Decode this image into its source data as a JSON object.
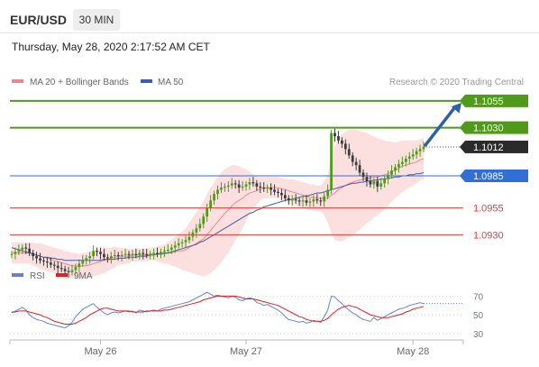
{
  "header": {
    "symbol": "EUR/USD",
    "timeframe": "30 MIN",
    "timestamp": "Thursday, May 28, 2020 2:17:52 AM CET"
  },
  "legend": {
    "items": [
      {
        "label": "MA 20 + Bollinger Bands",
        "color": "#f0868c"
      },
      {
        "label": "MA 50",
        "color": "#3d5fa8"
      }
    ],
    "credit": "Research © 2020 Trading Central"
  },
  "colors": {
    "resistance": "#4f9a1a",
    "pivot": "#2f6fd6",
    "support": "#e53935",
    "last_price": "#2b2b2b",
    "arrow": "#2f5fa8",
    "candle_up": "#4f9a1a",
    "candle_down": "#3a3a3a",
    "band_fill": "#fbd5d5",
    "ma20": "#f0868c",
    "ma50": "#3d5fa8",
    "rsi": "#5f82d8",
    "rsi_ma": "#e02020"
  },
  "chart_data": [
    {
      "type": "candlestick",
      "ylim": [
        1.0905,
        1.1065
      ],
      "x_ticks": [
        {
          "label": "May 26",
          "index": 25
        },
        {
          "label": "May 27",
          "index": 66
        },
        {
          "label": "May 28",
          "index": 113
        }
      ],
      "levels": [
        {
          "value": 1.1055,
          "label": "1.1055",
          "kind": "resistance"
        },
        {
          "value": 1.103,
          "label": "1.1030",
          "kind": "resistance"
        },
        {
          "value": 1.1012,
          "label": "1.1012",
          "kind": "last_price"
        },
        {
          "value": 1.0985,
          "label": "1.0985",
          "kind": "pivot"
        },
        {
          "value": 1.0955,
          "label": "1.0955",
          "kind": "support"
        },
        {
          "value": 1.093,
          "label": "1.0930",
          "kind": "support"
        }
      ],
      "close": [
        1.0912,
        1.0914,
        1.0916,
        1.0918,
        1.0917,
        1.0913,
        1.091,
        1.0908,
        1.0906,
        1.0905,
        1.0904,
        1.0902,
        1.0901,
        1.0899,
        1.0898,
        1.0896,
        1.0895,
        1.0897,
        1.09,
        1.0903,
        1.0906,
        1.0908,
        1.091,
        1.0915,
        1.0914,
        1.0912,
        1.0909,
        1.0908,
        1.091,
        1.0911,
        1.091,
        1.0911,
        1.0912,
        1.0911,
        1.0912,
        1.0911,
        1.0913,
        1.0912,
        1.0911,
        1.0912,
        1.0913,
        1.0912,
        1.0914,
        1.0915,
        1.0916,
        1.0918,
        1.092,
        1.0922,
        1.0923,
        1.0925,
        1.0928,
        1.0932,
        1.0936,
        1.094,
        1.0947,
        1.0955,
        1.0962,
        1.0968,
        1.0972,
        1.0974,
        1.0975,
        1.0976,
        1.0978,
        1.0977,
        1.0974,
        1.0975,
        1.0977,
        1.0979,
        1.0978,
        1.0975,
        1.0974,
        1.0973,
        1.0974,
        1.0972,
        1.097,
        1.0969,
        1.0967,
        1.0964,
        1.0962,
        1.0963,
        1.0962,
        1.0961,
        1.0962,
        1.096,
        1.0961,
        1.0963,
        1.0962,
        1.0961,
        1.0966,
        1.0972,
        1.1025,
        1.1022,
        1.1018,
        1.1015,
        1.101,
        1.1004,
        1.0998,
        1.0995,
        1.0988,
        1.0984,
        1.098,
        1.0977,
        1.098,
        1.0975,
        1.0978,
        1.0982,
        1.0986,
        1.099,
        1.0993,
        1.0996,
        1.0998,
        1.1001,
        1.1003,
        1.1005,
        1.1008,
        1.101,
        1.1012
      ],
      "ma20": [
        1.0913,
        1.0913,
        1.0913,
        1.0913,
        1.0913,
        1.0913,
        1.0912,
        1.0911,
        1.091,
        1.0909,
        1.0908,
        1.0907,
        1.0906,
        1.0905,
        1.0904,
        1.0903,
        1.0902,
        1.0901,
        1.0901,
        1.09,
        1.0901,
        1.0901,
        1.0902,
        1.0903,
        1.0904,
        1.0905,
        1.0906,
        1.0907,
        1.0908,
        1.0909,
        1.091,
        1.091,
        1.091,
        1.091,
        1.0911,
        1.0911,
        1.0911,
        1.0911,
        1.0911,
        1.0912,
        1.0912,
        1.0912,
        1.0912,
        1.0912,
        1.0913,
        1.0913,
        1.0914,
        1.0915,
        1.0915,
        1.0916,
        1.0918,
        1.092,
        1.0922,
        1.0924,
        1.0926,
        1.093,
        1.0934,
        1.0938,
        1.0942,
        1.0946,
        1.095,
        1.0953,
        1.0957,
        1.096,
        1.0962,
        1.0964,
        1.0967,
        1.0969,
        1.097,
        1.0971,
        1.0973,
        1.0974,
        1.0974,
        1.0974,
        1.0974,
        1.0974,
        1.0973,
        1.0972,
        1.0971,
        1.097,
        1.0969,
        1.0968,
        1.0967,
        1.0966,
        1.0965,
        1.0965,
        1.0964,
        1.0964,
        1.0964,
        1.0964,
        1.0967,
        1.0969,
        1.0972,
        1.0974,
        1.0976,
        1.0978,
        1.0979,
        1.098,
        1.0981,
        1.0982,
        1.0983,
        1.0983,
        1.0984,
        1.0984,
        1.0985,
        1.0986,
        1.0987,
        1.0989,
        1.099,
        1.0992,
        1.0994,
        1.0995,
        1.0996,
        1.0997,
        1.0998,
        1.1,
        1.1001
      ],
      "band_width": [
        0.001,
        0.001,
        0.001,
        0.001,
        0.001,
        0.001,
        0.0011,
        0.0011,
        0.0012,
        0.0012,
        0.0012,
        0.0012,
        0.0012,
        0.0012,
        0.0012,
        0.0012,
        0.0012,
        0.0012,
        0.0012,
        0.0012,
        0.0012,
        0.0012,
        0.0012,
        0.0012,
        0.0012,
        0.0012,
        0.0012,
        0.0011,
        0.001,
        0.001,
        0.0008,
        0.0008,
        0.0007,
        0.0007,
        0.0006,
        0.0006,
        0.0006,
        0.0006,
        0.0006,
        0.0006,
        0.0006,
        0.0007,
        0.0008,
        0.0009,
        0.001,
        0.0012,
        0.0014,
        0.0016,
        0.0018,
        0.002,
        0.0023,
        0.0026,
        0.0029,
        0.0032,
        0.0035,
        0.0038,
        0.004,
        0.0041,
        0.0042,
        0.0042,
        0.0041,
        0.004,
        0.0038,
        0.0035,
        0.0032,
        0.0028,
        0.0024,
        0.002,
        0.0016,
        0.0013,
        0.0011,
        0.001,
        0.001,
        0.001,
        0.001,
        0.001,
        0.001,
        0.001,
        0.0011,
        0.0012,
        0.0012,
        0.0012,
        0.0012,
        0.0012,
        0.0012,
        0.0012,
        0.0012,
        0.0012,
        0.0016,
        0.0022,
        0.0036,
        0.0044,
        0.0048,
        0.005,
        0.005,
        0.005,
        0.0049,
        0.0048,
        0.0046,
        0.0044,
        0.0042,
        0.004,
        0.0038,
        0.0036,
        0.0034,
        0.0032,
        0.003,
        0.0028,
        0.0026,
        0.0025,
        0.0024,
        0.0023,
        0.0022,
        0.0021,
        0.002,
        0.0019,
        0.0019
      ],
      "ma50": [
        1.0918,
        1.0917,
        1.0916,
        1.0915,
        1.0914,
        1.0913,
        1.0912,
        1.0911,
        1.091,
        1.0909,
        1.0909,
        1.0908,
        1.0908,
        1.0907,
        1.0907,
        1.0906,
        1.0906,
        1.0906,
        1.0906,
        1.0906,
        1.0906,
        1.0906,
        1.0906,
        1.0906,
        1.0906,
        1.0906,
        1.0907,
        1.0907,
        1.0907,
        1.0907,
        1.0908,
        1.0908,
        1.0908,
        1.0909,
        1.0909,
        1.0909,
        1.091,
        1.091,
        1.091,
        1.0911,
        1.0911,
        1.0912,
        1.0912,
        1.0913,
        1.0913,
        1.0914,
        1.0915,
        1.0916,
        1.0917,
        1.0918,
        1.0919,
        1.092,
        1.0921,
        1.0923,
        1.0924,
        1.0926,
        1.0928,
        1.093,
        1.0932,
        1.0934,
        1.0936,
        1.0938,
        1.094,
        1.0942,
        1.0944,
        1.0946,
        1.0948,
        1.095,
        1.0951,
        1.0953,
        1.0954,
        1.0956,
        1.0957,
        1.0958,
        1.0959,
        1.096,
        1.0961,
        1.0962,
        1.0963,
        1.0963,
        1.0964,
        1.0965,
        1.0966,
        1.0966,
        1.0967,
        1.0968,
        1.0969,
        1.0969,
        1.097,
        1.0971,
        1.0972,
        1.0973,
        1.0974,
        1.0975,
        1.0976,
        1.0977,
        1.0978,
        1.0978,
        1.0979,
        1.0979,
        1.098,
        1.098,
        1.0981,
        1.0981,
        1.0982,
        1.0982,
        1.0983,
        1.0983,
        1.0984,
        1.0984,
        1.0985,
        1.0985,
        1.0986,
        1.0986,
        1.0987,
        1.0987,
        1.0988
      ],
      "forecast_arrow": {
        "from_index": 116,
        "from_value": 1.1012,
        "to_index": 125,
        "to_value": 1.1055
      }
    },
    {
      "type": "line",
      "legend": [
        "RSI",
        "9MA"
      ],
      "ylim": [
        25,
        80
      ],
      "y_ticks": [
        70,
        50,
        30
      ],
      "series": [
        {
          "name": "RSI",
          "values": [
            52,
            54,
            56,
            58,
            55,
            50,
            47,
            45,
            44,
            43,
            41,
            40,
            39,
            38,
            37,
            36,
            38,
            42,
            48,
            52,
            56,
            58,
            60,
            62,
            58,
            55,
            52,
            50,
            52,
            53,
            52,
            53,
            54,
            53,
            54,
            52,
            55,
            54,
            53,
            54,
            55,
            54,
            56,
            57,
            58,
            59,
            60,
            61,
            62,
            63,
            64,
            66,
            68,
            70,
            72,
            74,
            72,
            70,
            71,
            70,
            69,
            68,
            70,
            69,
            66,
            65,
            67,
            68,
            67,
            63,
            62,
            60,
            61,
            59,
            57,
            55,
            52,
            48,
            45,
            44,
            43,
            42,
            43,
            41,
            42,
            44,
            43,
            42,
            48,
            55,
            70,
            69,
            65,
            62,
            58,
            55,
            52,
            50,
            47,
            45,
            44,
            43,
            47,
            44,
            46,
            48,
            50,
            52,
            54,
            56,
            57,
            58,
            60,
            61,
            62,
            63,
            62
          ]
        },
        {
          "name": "9MA",
          "values": [
            53,
            53,
            54,
            54,
            54,
            53,
            52,
            51,
            50,
            48,
            47,
            45,
            43,
            42,
            41,
            40,
            40,
            40,
            41,
            43,
            45,
            47,
            50,
            52,
            54,
            56,
            57,
            57,
            56,
            55,
            54,
            54,
            54,
            54,
            53,
            53,
            53,
            53,
            54,
            54,
            54,
            54,
            54,
            55,
            55,
            56,
            57,
            58,
            59,
            60,
            61,
            62,
            63,
            64,
            66,
            67,
            68,
            69,
            70,
            70,
            70,
            70,
            70,
            70,
            69,
            68,
            67,
            67,
            67,
            66,
            65,
            64,
            63,
            62,
            61,
            60,
            58,
            56,
            54,
            52,
            50,
            48,
            47,
            45,
            44,
            43,
            43,
            43,
            44,
            46,
            50,
            53,
            56,
            58,
            59,
            60,
            59,
            58,
            56,
            54,
            52,
            50,
            49,
            48,
            47,
            47,
            47,
            48,
            49,
            50,
            51,
            53,
            54,
            56,
            57,
            58,
            59
          ]
        }
      ]
    }
  ]
}
